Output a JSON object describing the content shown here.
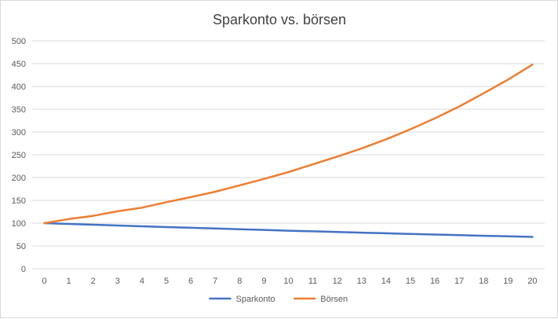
{
  "chart_data": {
    "type": "line",
    "title": "Sparkonto vs. börsen",
    "xlabel": "",
    "ylabel": "",
    "x": [
      0,
      1,
      2,
      3,
      4,
      5,
      6,
      7,
      8,
      9,
      10,
      11,
      12,
      13,
      14,
      15,
      16,
      17,
      18,
      19,
      20
    ],
    "ylim": [
      0,
      500
    ],
    "yticks": [
      0,
      50,
      100,
      150,
      200,
      250,
      300,
      350,
      400,
      450,
      500
    ],
    "grid": true,
    "legend_position": "bottom",
    "series": [
      {
        "name": "Sparkonto",
        "color": "#4472c4",
        "values": [
          100,
          98.2,
          96.5,
          94.8,
          93.1,
          91.4,
          89.8,
          88.2,
          86.6,
          85.1,
          83.5,
          82,
          80.6,
          79.1,
          77.7,
          76.4,
          75,
          73.7,
          72.3,
          71,
          69.8
        ]
      },
      {
        "name": "Börsen",
        "color": "#ed7d31",
        "values": [
          100,
          109,
          116,
          126,
          134,
          146,
          157,
          169,
          183,
          197,
          212,
          229,
          246,
          264,
          284,
          306,
          330,
          356,
          385,
          415,
          448
        ]
      }
    ]
  }
}
